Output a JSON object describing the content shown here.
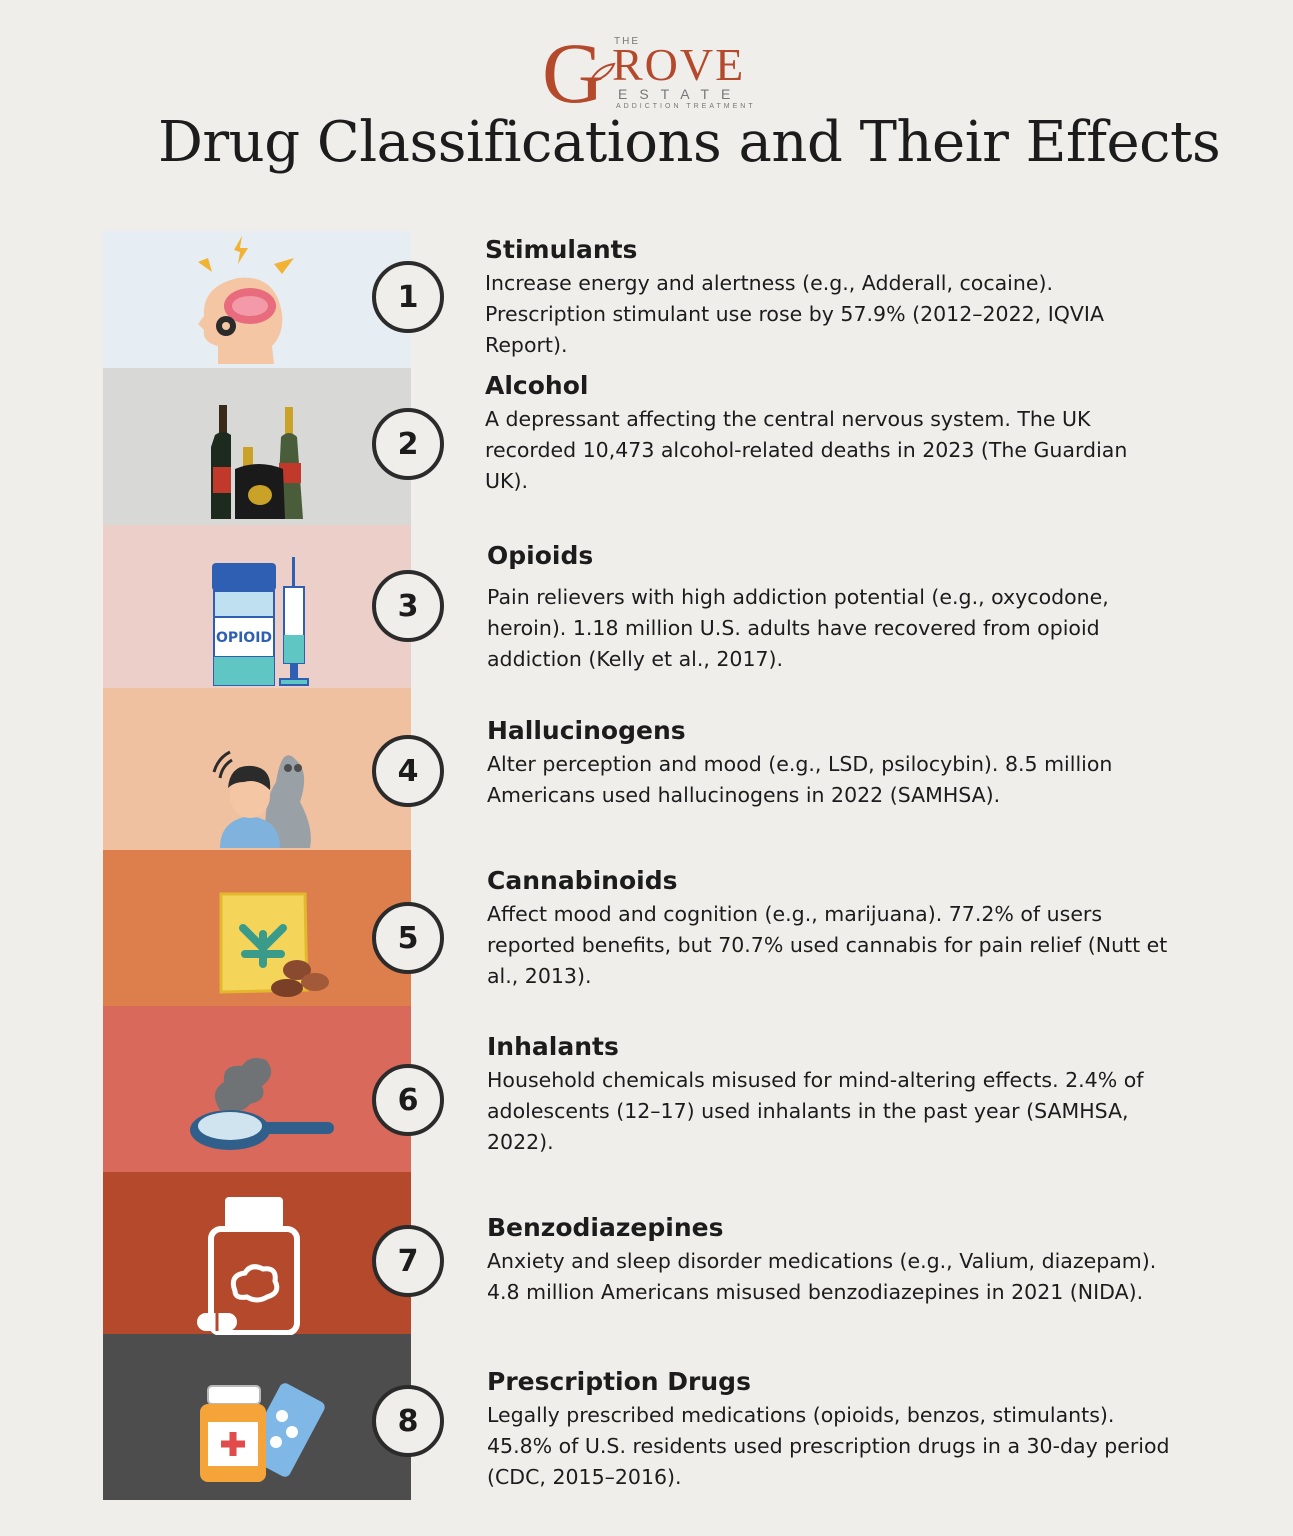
{
  "logo": {
    "the": "THE",
    "g": "G",
    "rove": "ROVE",
    "estate": "ESTATE",
    "tagline": "ADDICTION TREATMENT",
    "color": "#b5492c"
  },
  "title": "Drug Classifications and Their Effects",
  "items": [
    {
      "number": "1",
      "name": "Stimulants",
      "description": "Increase energy and alertness (e.g., Adderall, cocaine). Prescription stimulant use rose by 57.9% (2012–2022, IQVIA Report).",
      "strip_color": "#e6edf3",
      "icon": "brain-head-icon"
    },
    {
      "number": "2",
      "name": "Alcohol",
      "description": "A depressant affecting the central nervous system. The UK recorded 10,473 alcohol-related deaths in 2023 (The Guardian UK).",
      "strip_color": "#d8d8d7",
      "icon": "bottles-icon"
    },
    {
      "number": "3",
      "name": "Opioids",
      "description": "Pain relievers with high addiction potential (e.g., oxycodone, heroin). 1.18 million U.S. adults have recovered from opioid addiction (Kelly et al., 2017).",
      "strip_color": "#eccfc8",
      "icon_label": "OPIOID",
      "icon": "pill-bottle-syringe-icon"
    },
    {
      "number": "4",
      "name": "Hallucinogens",
      "description": "Alter perception and mood (e.g., LSD, psilocybin). 8.5 million Americans used hallucinogens in 2022 (SAMHSA).",
      "strip_color": "#f0c1a0",
      "icon": "hallucinating-person-icon"
    },
    {
      "number": "5",
      "name": "Cannabinoids",
      "description": "Affect mood and cognition (e.g., marijuana). 77.2% of users reported benefits, but 70.7% used cannabis for pain relief (Nutt et al., 2013).",
      "strip_color": "#dd7f4d",
      "icon": "cannabis-bag-icon"
    },
    {
      "number": "6",
      "name": "Inhalants",
      "description": "Household chemicals misused for mind-altering effects. 2.4% of adolescents (12–17) used inhalants in the past year (SAMHSA, 2022).",
      "strip_color": "#d9695a",
      "icon": "smoking-spoon-icon"
    },
    {
      "number": "7",
      "name": "Benzodiazepines",
      "description": "Anxiety and sleep disorder medications (e.g., Valium, diazepam). 4.8 million Americans misused benzodiazepines in 2021 (NIDA).",
      "strip_color": "#b5492c",
      "icon": "medicine-bottle-icon"
    },
    {
      "number": "8",
      "name": "Prescription Drugs",
      "description": "Legally prescribed medications (opioids, benzos, stimulants). 45.8% of U.S. residents used prescription drugs in a 30-day period (CDC, 2015–2016).",
      "strip_color": "#4d4d4d",
      "icon": "prescription-pills-icon"
    }
  ]
}
